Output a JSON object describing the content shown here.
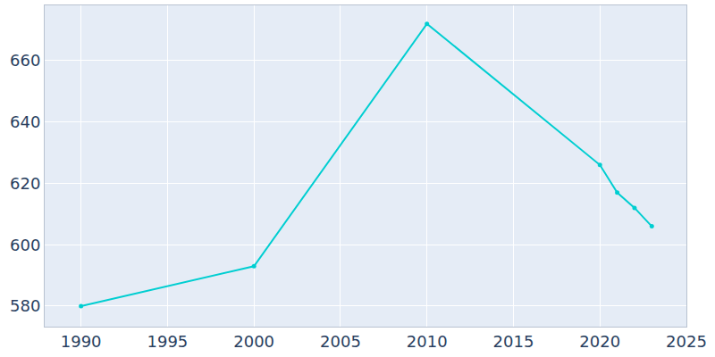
{
  "chart_data": {
    "type": "line",
    "x": [
      1990,
      2000,
      2010,
      2020,
      2021,
      2022,
      2023
    ],
    "values": [
      580,
      593,
      672,
      626,
      617,
      612,
      606
    ],
    "color": "#00ced1",
    "marker": "circle",
    "xlim": [
      1987.9,
      2025
    ],
    "xticks": [
      1990,
      1995,
      2000,
      2005,
      2010,
      2015,
      2020,
      2025
    ],
    "ylim": [
      573.3,
      678
    ],
    "yticks": [
      580,
      600,
      620,
      640,
      660
    ],
    "grid": true
  }
}
